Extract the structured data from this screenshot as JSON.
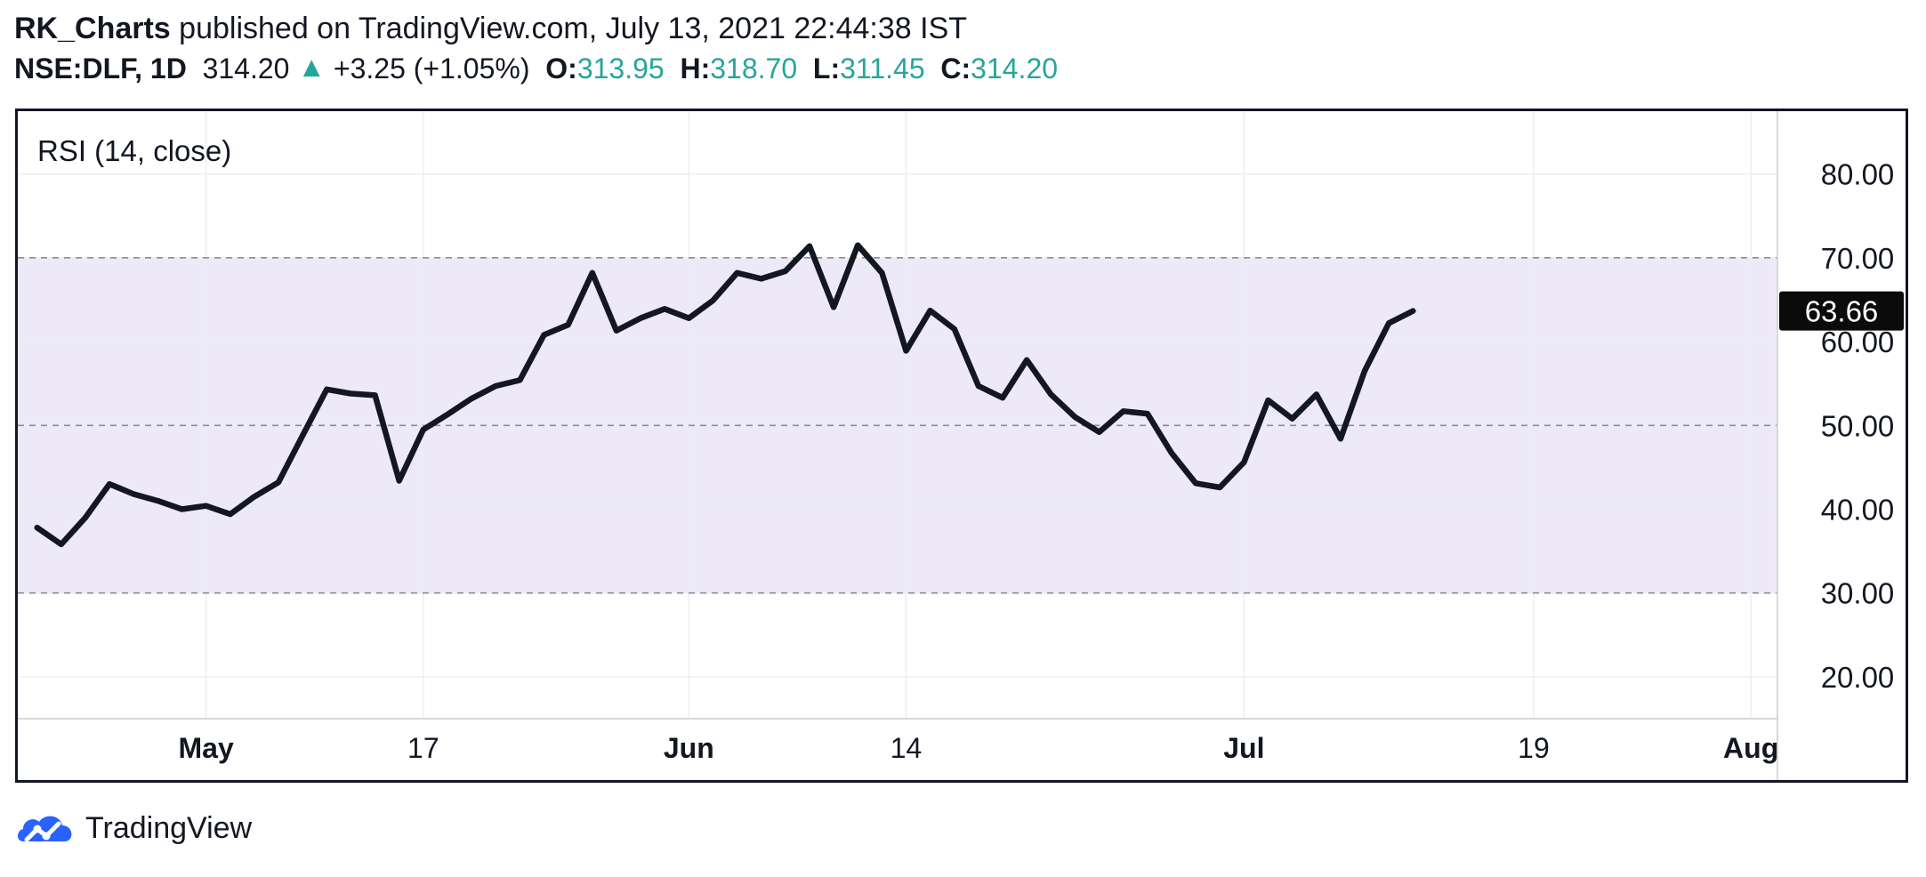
{
  "header": {
    "author": "RK_Charts",
    "published_text": "published on TradingView.com, July 13, 2021 22:44:38 IST",
    "symbol": "NSE:DLF, 1D",
    "price": "314.20",
    "arrow": "▲",
    "change": "+3.25 (+1.05%)",
    "o_label": "O:",
    "o_value": "313.95",
    "h_label": "H:",
    "h_value": "318.70",
    "l_label": "L:",
    "l_value": "311.45",
    "c_label": "C:",
    "c_value": "314.20"
  },
  "footer": {
    "brand": "TradingView"
  },
  "colors": {
    "line": "#131722",
    "band": "#ede9f8",
    "accent": "#26a69a",
    "grid": "#eceef2"
  },
  "chart_data": {
    "type": "line",
    "title": "RSI (14, close)",
    "ylim": [
      15,
      87.5
    ],
    "y_ticks": [
      20,
      30,
      40,
      50,
      60,
      70,
      80
    ],
    "y_tick_labels": [
      "20.00",
      "30.00",
      "40.00",
      "50.00",
      "60.00",
      "70.00",
      "80.00"
    ],
    "band": [
      30,
      70
    ],
    "dashed_levels": [
      30,
      50,
      70
    ],
    "x_labels": [
      {
        "label": "May",
        "day": 7,
        "bold": true
      },
      {
        "label": "17",
        "day": 16,
        "bold": false
      },
      {
        "label": "Jun",
        "day": 27,
        "bold": true
      },
      {
        "label": "14",
        "day": 36,
        "bold": false
      },
      {
        "label": "Jul",
        "day": 50,
        "bold": true
      },
      {
        "label": "19",
        "day": 62,
        "bold": false
      },
      {
        "label": "Aug",
        "day": 71,
        "bold": true
      }
    ],
    "x_range": [
      -0.8,
      72.1
    ],
    "last_value_label": "63.66",
    "series": [
      {
        "name": "RSI",
        "points": [
          [
            0,
            37.8
          ],
          [
            1,
            35.8
          ],
          [
            2,
            39
          ],
          [
            3,
            43
          ],
          [
            4,
            41.8
          ],
          [
            5,
            41
          ],
          [
            6,
            40
          ],
          [
            7,
            40.4
          ],
          [
            8,
            39.4
          ],
          [
            9,
            41.5
          ],
          [
            10,
            43.2
          ],
          [
            11,
            48.8
          ],
          [
            12,
            54.3
          ],
          [
            13,
            53.8
          ],
          [
            14,
            53.6
          ],
          [
            15,
            43.4
          ],
          [
            16,
            49.5
          ],
          [
            17,
            51.3
          ],
          [
            18,
            53.2
          ],
          [
            19,
            54.7
          ],
          [
            20,
            55.4
          ],
          [
            21,
            60.8
          ],
          [
            22,
            62
          ],
          [
            23,
            68.2
          ],
          [
            24,
            61.3
          ],
          [
            25,
            62.8
          ],
          [
            26,
            63.9
          ],
          [
            27,
            62.8
          ],
          [
            28,
            64.9
          ],
          [
            29,
            68.2
          ],
          [
            30,
            67.5
          ],
          [
            31,
            68.4
          ],
          [
            32,
            71.4
          ],
          [
            33,
            64.1
          ],
          [
            34,
            71.5
          ],
          [
            35,
            68.2
          ],
          [
            36,
            58.9
          ],
          [
            37,
            63.7
          ],
          [
            38,
            61.5
          ],
          [
            39,
            54.7
          ],
          [
            40,
            53.3
          ],
          [
            41,
            57.8
          ],
          [
            42,
            53.7
          ],
          [
            43,
            51
          ],
          [
            44,
            49.2
          ],
          [
            45,
            51.7
          ],
          [
            46,
            51.4
          ],
          [
            47,
            46.7
          ],
          [
            48,
            43.1
          ],
          [
            49,
            42.6
          ],
          [
            50,
            45.6
          ],
          [
            51,
            53
          ],
          [
            52,
            50.8
          ],
          [
            53,
            53.7
          ],
          [
            54,
            48.4
          ],
          [
            55,
            56.5
          ],
          [
            56,
            62.2
          ],
          [
            57,
            63.66
          ]
        ]
      }
    ]
  }
}
